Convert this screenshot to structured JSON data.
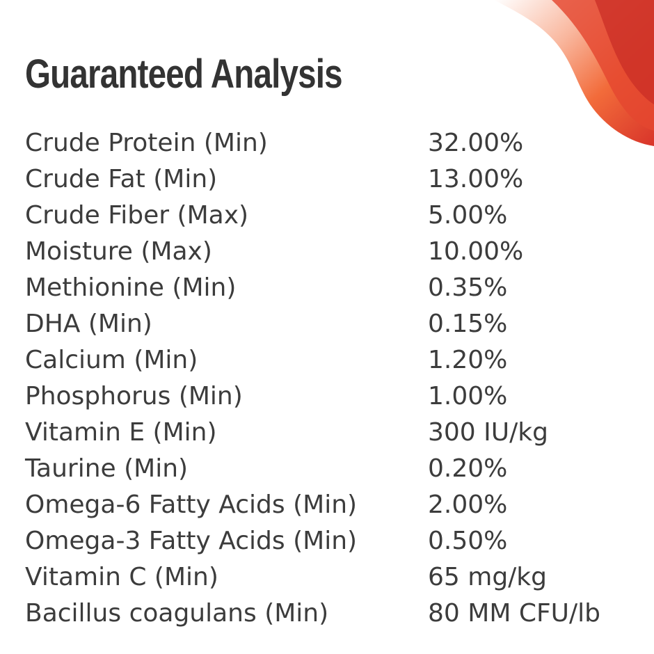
{
  "header": {
    "title": "Guaranteed Analysis"
  },
  "colors": {
    "text": "#3c3c3c",
    "title": "#333333",
    "accent_orange": "#f26b3a",
    "accent_red": "#d8342a",
    "background": "#ffffff"
  },
  "decoration": {
    "icon": "orange-red-swoosh"
  },
  "analysis": {
    "rows": [
      {
        "nutrient": "Crude Protein (Min)",
        "value": "32.00%"
      },
      {
        "nutrient": "Crude Fat (Min)",
        "value": "13.00%"
      },
      {
        "nutrient": "Crude Fiber (Max)",
        "value": "5.00%"
      },
      {
        "nutrient": "Moisture (Max)",
        "value": "10.00%"
      },
      {
        "nutrient": "Methionine (Min)",
        "value": "0.35%"
      },
      {
        "nutrient": "DHA (Min)",
        "value": "0.15%"
      },
      {
        "nutrient": "Calcium (Min)",
        "value": "1.20%"
      },
      {
        "nutrient": "Phosphorus (Min)",
        "value": "1.00%"
      },
      {
        "nutrient": "Vitamin E (Min)",
        "value": "300 IU/kg"
      },
      {
        "nutrient": "Taurine (Min)",
        "value": "0.20%"
      },
      {
        "nutrient": "Omega-6 Fatty Acids (Min)",
        "value": "2.00%"
      },
      {
        "nutrient": "Omega-3 Fatty Acids (Min)",
        "value": "0.50%"
      },
      {
        "nutrient": "Vitamin C (Min)",
        "value": "65 mg/kg"
      },
      {
        "nutrient": "Bacillus coagulans (Min)",
        "value": "80 MM CFU/lb"
      }
    ]
  }
}
